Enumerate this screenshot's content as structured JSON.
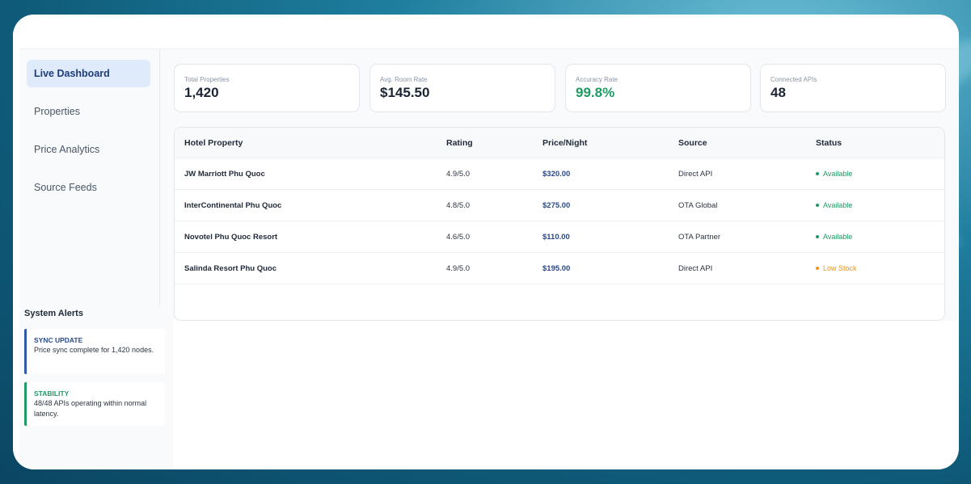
{
  "sidebar": {
    "items": [
      {
        "label": "Live Dashboard",
        "active": true
      },
      {
        "label": "Properties"
      },
      {
        "label": "Price Analytics"
      },
      {
        "label": "Source Feeds"
      }
    ]
  },
  "stats": [
    {
      "label": "Total Properties",
      "value": "1,420"
    },
    {
      "label": "Avg. Room Rate",
      "value": "$145.50"
    },
    {
      "label": "Accuracy Rate",
      "value": "99.8%"
    },
    {
      "label": "Connected APIs",
      "value": "48"
    }
  ],
  "table": {
    "headers": [
      "Hotel Property",
      "Rating",
      "Price/Night",
      "Source",
      "Status"
    ],
    "rows": [
      {
        "name": "JW Marriott Phu Quoc",
        "rating": "4.9/5.0",
        "price": "$320.00",
        "source": "Direct API",
        "status": "Available",
        "status_color": "#1e9a63"
      },
      {
        "name": "InterContinental Phu Quoc",
        "rating": "4.8/5.0",
        "price": "$275.00",
        "source": "OTA Global",
        "status": "Available",
        "status_color": "#1e9a63"
      },
      {
        "name": "Novotel Phu Quoc Resort",
        "rating": "4.6/5.0",
        "price": "$110.00",
        "source": "OTA Partner",
        "status": "Available",
        "status_color": "#1e9a63"
      },
      {
        "name": "Salinda Resort Phu Quoc",
        "rating": "4.9/5.0",
        "price": "$195.00",
        "source": "Direct API",
        "status": "Low Stock",
        "status_color": "#e8951c"
      }
    ]
  },
  "alerts": {
    "title": "System Alerts",
    "items": [
      {
        "head": "SYNC UPDATE",
        "msg": "Price sync complete for 1,420 nodes."
      },
      {
        "head": "STABILITY",
        "msg": "48/48 APIs operating within normal latency."
      }
    ]
  },
  "colors": {
    "accent": "#2a4a8a",
    "success": "#1e9a63",
    "warning": "#e8951c"
  }
}
